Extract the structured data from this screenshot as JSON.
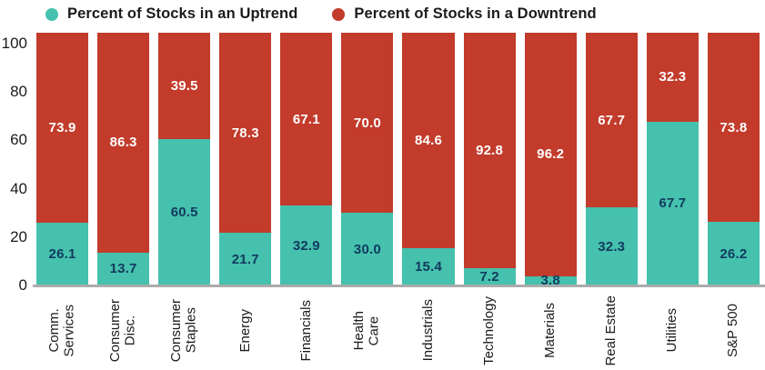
{
  "chart_data": {
    "type": "bar",
    "stacked": true,
    "categories": [
      "Comm.\nServices",
      "Consumer\nDisc.",
      "Consumer\nStaples",
      "Energy",
      "Financials",
      "Health\nCare",
      "Industrials",
      "Technology",
      "Materials",
      "Real Estate",
      "Utilities",
      "S&P 500"
    ],
    "series": [
      {
        "name": "Percent of Stocks in an Uptrend",
        "color": "#45C1AD",
        "label_color": "#123A5E",
        "values": [
          26.1,
          13.7,
          60.5,
          21.7,
          32.9,
          30.0,
          15.4,
          7.2,
          3.8,
          32.3,
          67.7,
          26.2
        ]
      },
      {
        "name": "Percent of Stocks in a Downtrend",
        "color": "#C23B2B",
        "label_color": "#FFFFFF",
        "values": [
          73.9,
          86.3,
          39.5,
          78.3,
          67.1,
          70.0,
          84.6,
          92.8,
          96.2,
          67.7,
          32.3,
          73.8
        ]
      }
    ],
    "yticks": [
      0,
      20,
      40,
      60,
      80,
      100
    ],
    "ylim": [
      0,
      104.5
    ],
    "xlabel": "",
    "ylabel": "",
    "title": "",
    "grid": false,
    "legend_position": "top",
    "axis_line_color": "#ABABAB",
    "text_color": "#1b1b1b"
  }
}
